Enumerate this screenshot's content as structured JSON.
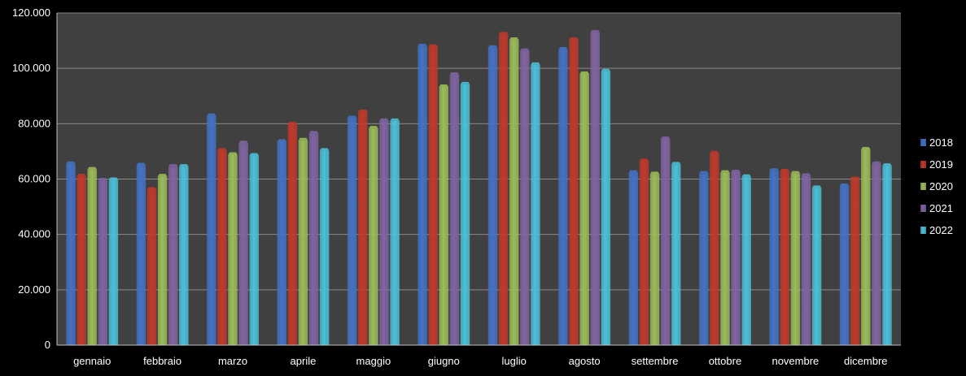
{
  "chart_data": {
    "type": "bar",
    "title": "",
    "xlabel": "",
    "ylabel": "",
    "ylim": [
      0,
      120000
    ],
    "y_ticks": [
      0,
      20000,
      40000,
      60000,
      80000,
      100000,
      120000
    ],
    "y_tick_labels": [
      "0",
      "20.000",
      "40.000",
      "60.000",
      "80.000",
      "100.000",
      "120.000"
    ],
    "grid": true,
    "legend_position": "right",
    "plot_background": "#404040",
    "background": "#000000",
    "categories": [
      "gennaio",
      "febbraio",
      "marzo",
      "aprile",
      "maggio",
      "giugno",
      "luglio",
      "agosto",
      "settembre",
      "ottobre",
      "novembre",
      "dicembre"
    ],
    "series": [
      {
        "name": "2018",
        "color": "#4472c4",
        "values": [
          65500,
          65000,
          82800,
          73500,
          82000,
          108000,
          107500,
          106800,
          62300,
          62000,
          63000,
          57500
        ]
      },
      {
        "name": "2019",
        "color": "#c0392b",
        "values": [
          61000,
          56200,
          70300,
          79800,
          84200,
          107800,
          112300,
          110300,
          66500,
          69300,
          62800,
          60000
        ]
      },
      {
        "name": "2020",
        "color": "#9bbb59",
        "values": [
          63500,
          61000,
          68800,
          74000,
          78300,
          93300,
          110300,
          98000,
          61800,
          62300,
          62000,
          70700
        ]
      },
      {
        "name": "2021",
        "color": "#8064a2",
        "values": [
          59500,
          64500,
          73000,
          76500,
          81000,
          97700,
          106300,
          113000,
          74500,
          62500,
          61200,
          65500
        ]
      },
      {
        "name": "2022",
        "color": "#4bc0d9",
        "values": [
          59700,
          64500,
          68500,
          70300,
          81000,
          94200,
          101300,
          98900,
          65300,
          60800,
          56800,
          64800
        ]
      }
    ]
  }
}
